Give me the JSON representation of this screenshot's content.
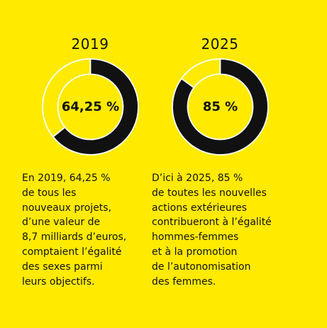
{
  "colors": {
    "background": "#FFEA00",
    "arc": "#111111",
    "remainder_fill": "#FFEA00",
    "separator": "#FFFFFF"
  },
  "chart_data": [
    {
      "type": "pie",
      "variant": "donut",
      "title": "2019",
      "center_label": "64,25 %",
      "value": 64.25,
      "max": 100,
      "description_lines": [
        "En 2019, 64,25 %",
        "de tous les",
        "nouveaux projets,",
        "d’une valeur de",
        "8,7 milliards d’euros,",
        "comptaient l’égalité",
        "des sexes parmi",
        "leurs objectifs."
      ]
    },
    {
      "type": "pie",
      "variant": "donut",
      "title": "2025",
      "center_label": "85 %",
      "value": 85,
      "max": 100,
      "description_lines": [
        "D’ici à 2025, 85 %",
        "de toutes les nouvelles",
        "actions extérieures",
        "contribueront à l’égalité",
        "hommes-femmes",
        "et à la promotion",
        "de l’autonomisation",
        "des femmes."
      ]
    }
  ]
}
